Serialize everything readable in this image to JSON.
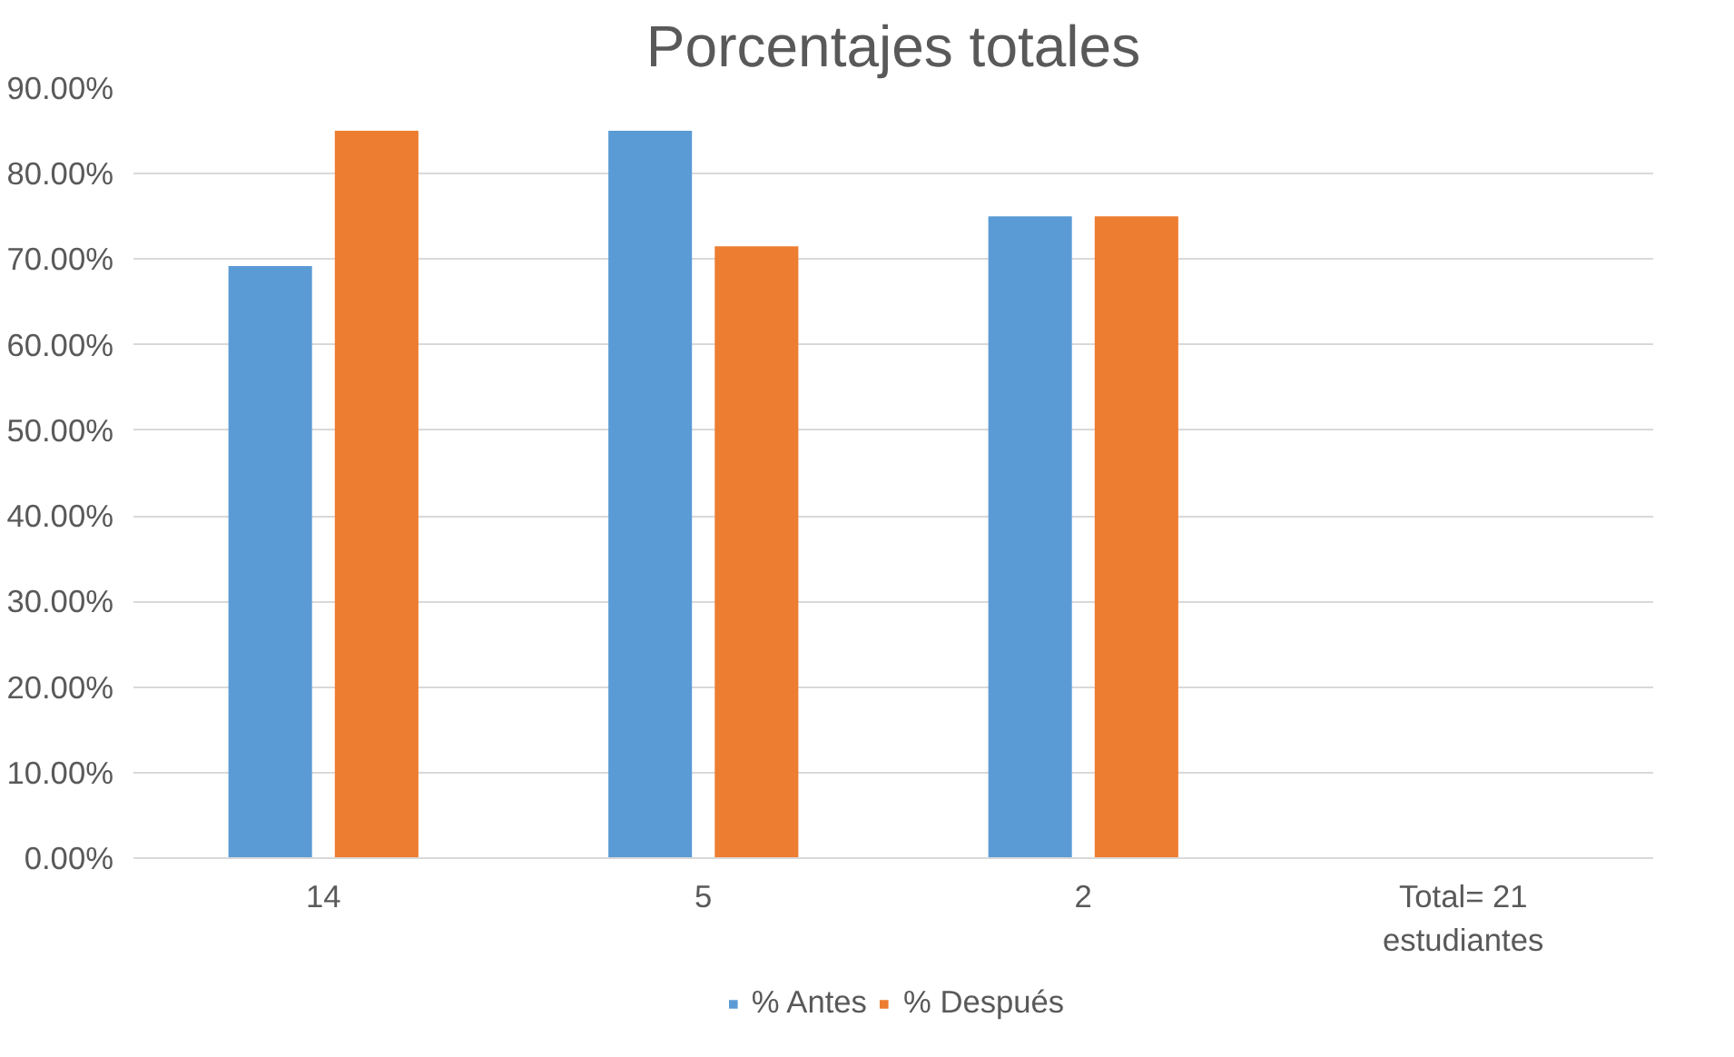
{
  "chart_data": {
    "type": "bar",
    "title": "Porcentajes totales",
    "categories": [
      "14",
      "5",
      "2",
      "Total= 21\nestudiantes"
    ],
    "series": [
      {
        "name": "% Antes",
        "color": "#5b9bd5",
        "values": [
          69.2,
          85.0,
          75.0,
          null
        ]
      },
      {
        "name": "% Después",
        "color": "#ed7d31",
        "values": [
          85.0,
          71.5,
          75.0,
          null
        ]
      }
    ],
    "ylim": [
      0,
      90
    ],
    "yticks": [
      {
        "value": 0,
        "label": "0.00%"
      },
      {
        "value": 10,
        "label": "10.00%"
      },
      {
        "value": 20,
        "label": "20.00%"
      },
      {
        "value": 30,
        "label": "30.00%"
      },
      {
        "value": 40,
        "label": "40.00%"
      },
      {
        "value": 50,
        "label": "50.00%"
      },
      {
        "value": 60,
        "label": "60.00%"
      },
      {
        "value": 70,
        "label": "70.00%"
      },
      {
        "value": 80,
        "label": "80.00%"
      },
      {
        "value": 90,
        "label": "90.00%"
      }
    ],
    "grid": "y",
    "legend": "bottom"
  }
}
